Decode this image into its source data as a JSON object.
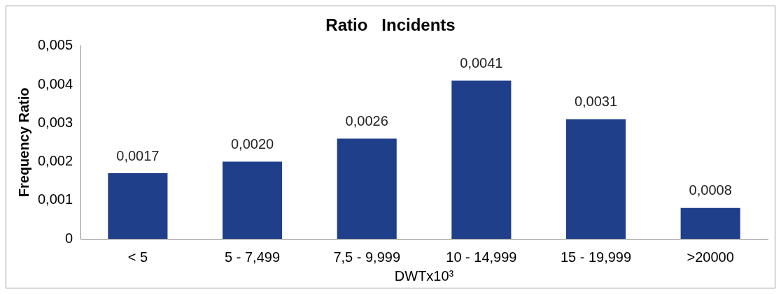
{
  "chart_data": {
    "type": "bar",
    "title": "Ratio   Incidents",
    "xlabel": "DWTx10³",
    "ylabel": "Frequency Ratio",
    "categories": [
      "< 5",
      "5 - 7,499",
      "7,5 - 9,999",
      "10 - 14,999",
      "15 - 19,999",
      ">20000"
    ],
    "values": [
      0.0017,
      0.002,
      0.0026,
      0.0041,
      0.0031,
      0.0008
    ],
    "value_labels": [
      "0,0017",
      "0,0020",
      "0,0026",
      "0,0041",
      "0,0031",
      "0,0008"
    ],
    "color": "#1f3f8a",
    "ylim": [
      0,
      0.005
    ],
    "yticks": [
      0,
      {
        "value": 0.001,
        "label": "0,001"
      },
      {
        "value": 0.002,
        "label": "0,002"
      },
      {
        "value": 0.003,
        "label": "0,003"
      },
      {
        "value": 0.004,
        "label": "0,004"
      },
      {
        "value": 0.005,
        "label": "0,005"
      }
    ],
    "grid": false,
    "legend": false
  }
}
